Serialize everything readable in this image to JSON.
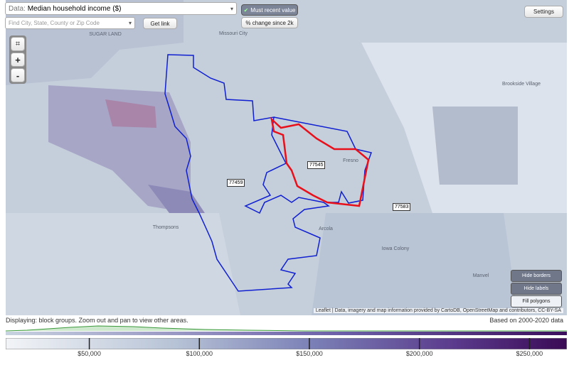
{
  "toolbar": {
    "data_label": "Data:",
    "data_select": "Median household income ($)",
    "search_placeholder": "Find City, State, County or Zip Code",
    "get_link": "Get link",
    "most_recent": "Must recent value",
    "change_since": "% change since 2k",
    "settings": "Settings"
  },
  "zoom": {
    "zoom_in": "+",
    "zoom_out": "-"
  },
  "map": {
    "places": [
      "SUGAR LAND",
      "Missouri City",
      "Brookside Village",
      "Fresno",
      "Thompsons",
      "Arcola",
      "Iowa Colony",
      "Manvel"
    ],
    "zip_labels": [
      "77459",
      "77545",
      "77583"
    ],
    "buttons": [
      "Hide borders",
      "Hide labels",
      "Fill polygons"
    ],
    "attribution": "Leaflet | Data, imagery and map information provided by CartoDB, OpenStreetMap and contributors, CC-BY-SA"
  },
  "footer": {
    "displaying": "Displaying: block groups. Zoom out and pan to view other areas.",
    "based_on": "Based on 2000-2020 data"
  },
  "legend": {
    "range": [
      12000,
      267000
    ],
    "ticks": [
      {
        "value": 50000,
        "label": "$50,000"
      },
      {
        "value": 100000,
        "label": "$100,000"
      },
      {
        "value": 150000,
        "label": "$150,000"
      },
      {
        "value": 200000,
        "label": "$200,000"
      },
      {
        "value": 250000,
        "label": "$250,000"
      }
    ]
  }
}
